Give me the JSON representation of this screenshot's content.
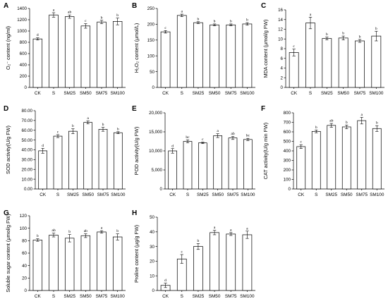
{
  "chart_data": [
    {
      "type": "bar",
      "panel": "A",
      "ylabel": "O₂⁻ content (ng/ml)",
      "categories": [
        "CK",
        "S",
        "SM25",
        "SM50",
        "SM75",
        "SM100"
      ],
      "values": [
        860,
        1285,
        1255,
        1090,
        1160,
        1170
      ],
      "errors": [
        20,
        40,
        30,
        40,
        30,
        60
      ],
      "letters": [
        "d",
        "a",
        "ab",
        "c",
        "b",
        "b"
      ],
      "ylim": [
        0,
        1400
      ],
      "yticks": [
        "0",
        "200",
        "400",
        "600",
        "800",
        "1000",
        "1200",
        "1400"
      ]
    },
    {
      "type": "bar",
      "panel": "B",
      "ylabel": "H₂O₂ content (μmol/L)",
      "categories": [
        "CK",
        "S",
        "SM25",
        "SM50",
        "SM75",
        "SM100"
      ],
      "values": [
        176,
        228,
        205,
        198,
        198,
        201
      ],
      "errors": [
        4,
        4,
        3,
        3,
        3,
        4
      ],
      "letters": [
        "c",
        "a",
        "b",
        "b",
        "b",
        "b"
      ],
      "ylim": [
        0,
        250
      ],
      "yticks": [
        "0",
        "50",
        "100",
        "150",
        "200",
        "250"
      ]
    },
    {
      "type": "bar",
      "panel": "C",
      "ylabel": "MDA content (μmol/g FW)",
      "categories": [
        "CK",
        "S",
        "SM25",
        "SM50",
        "SM75",
        "SM100"
      ],
      "values": [
        7.2,
        13.3,
        10.1,
        10.2,
        9.6,
        10.6
      ],
      "errors": [
        0.7,
        1.2,
        0.3,
        0.4,
        0.3,
        1.0
      ],
      "letters": [
        "c",
        "a",
        "b",
        "b",
        "b",
        "b"
      ],
      "ylim": [
        0,
        16
      ],
      "yticks": [
        "0",
        "2",
        "4",
        "6",
        "8",
        "10",
        "12",
        "14",
        "16"
      ]
    },
    {
      "type": "bar",
      "panel": "D",
      "ylabel": "SOD activity(U/g FW)",
      "categories": [
        "CK",
        "S",
        "SM25",
        "SM50",
        "SM75",
        "SM100"
      ],
      "values": [
        39,
        54,
        59,
        68,
        61,
        57.5
      ],
      "errors": [
        2.5,
        1.5,
        2.5,
        1.5,
        2.0,
        1.0
      ],
      "letters": [
        "d",
        "c",
        "b",
        "a",
        "b",
        "b"
      ],
      "ylim": [
        0,
        80
      ],
      "yticks": [
        "0.00",
        "10.00",
        "20.00",
        "30.00",
        "40.00",
        "50.00",
        "60.00",
        "70.00",
        "80.00"
      ]
    },
    {
      "type": "bar",
      "panel": "E",
      "ylabel": "POD activity(U/g FW)",
      "categories": [
        "CK",
        "S",
        "SM25",
        "SM50",
        "SM75",
        "SM100"
      ],
      "values": [
        10000,
        12500,
        12100,
        14000,
        13400,
        13000
      ],
      "errors": [
        600,
        400,
        200,
        500,
        400,
        300
      ],
      "letters": [
        "d",
        "bc",
        "c",
        "a",
        "ab",
        "bc"
      ],
      "ylim": [
        0,
        20000
      ],
      "yticks": [
        "0",
        "5,000",
        "10,000",
        "15,000",
        "20,000"
      ]
    },
    {
      "type": "bar",
      "panel": "F",
      "ylabel": "CAT activity(U/g min FW)",
      "categories": [
        "CK",
        "S",
        "SM25",
        "SM50",
        "SM75",
        "SM100"
      ],
      "values": [
        445,
        605,
        668,
        652,
        718,
        635
      ],
      "errors": [
        20,
        15,
        20,
        20,
        35,
        30
      ],
      "letters": [
        "c",
        "b",
        "ab",
        "b",
        "a",
        "b"
      ],
      "ylim": [
        0,
        800
      ],
      "yticks": [
        "0",
        "100",
        "200",
        "300",
        "400",
        "500",
        "600",
        "700",
        "800"
      ]
    },
    {
      "type": "bar",
      "panel": "G",
      "ylabel": "Soluble sugar content (μmol/g FW)",
      "categories": [
        "CK",
        "S",
        "SM25",
        "SM50",
        "SM75",
        "SM100"
      ],
      "values": [
        81,
        89,
        84,
        88,
        94,
        86
      ],
      "errors": [
        2,
        3,
        6,
        3,
        2,
        5
      ],
      "letters": [
        "b",
        "ab",
        "b",
        "ab",
        "a",
        "b"
      ],
      "ylim": [
        0,
        120
      ],
      "yticks": [
        "0",
        "20",
        "40",
        "60",
        "80",
        "100",
        "120"
      ]
    },
    {
      "type": "bar",
      "panel": "H",
      "ylabel": "Proline content (μg/g FW)",
      "categories": [
        "CK",
        "S",
        "SM25",
        "SM50",
        "SM75",
        "SM100"
      ],
      "values": [
        3.5,
        21.5,
        30,
        39.5,
        38.5,
        38
      ],
      "errors": [
        1.5,
        3,
        2,
        1.5,
        1,
        2.5
      ],
      "letters": [
        "d",
        "c",
        "b",
        "a",
        "a",
        "a"
      ],
      "ylim": [
        0,
        50
      ],
      "yticks": [
        "0",
        "10",
        "20",
        "30",
        "40",
        "50"
      ]
    }
  ]
}
